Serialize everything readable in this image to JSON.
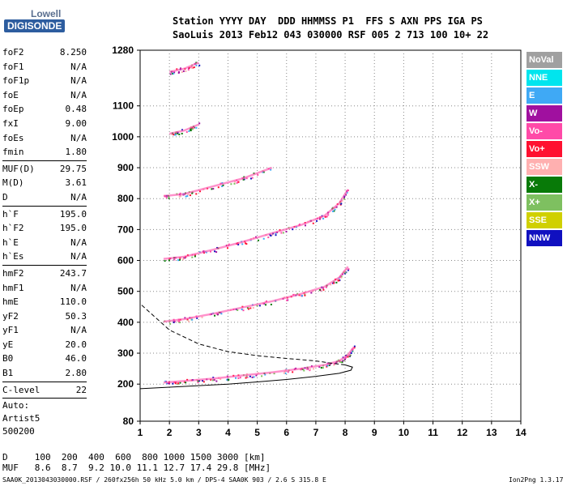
{
  "logo": {
    "line1": "Lowell",
    "line2": "DIGISONDE"
  },
  "header": {
    "line1": "Station YYYY DAY  DDD HHMMSS P1  FFS S AXN PPS IGA PS",
    "line2": "SaoLuis 2013 Feb12 043 030000 RSF 005 2 713 100 10+ 22"
  },
  "params": [
    [
      {
        "k": "foF2",
        "v": "8.250"
      },
      {
        "k": "foF1",
        "v": "N/A"
      },
      {
        "k": "foF1p",
        "v": "N/A"
      },
      {
        "k": "foE",
        "v": "N/A"
      },
      {
        "k": "foEp",
        "v": "0.48"
      },
      {
        "k": "fxI",
        "v": "9.00"
      },
      {
        "k": "foEs",
        "v": "N/A"
      },
      {
        "k": "fmin",
        "v": "1.80"
      }
    ],
    [
      {
        "k": "MUF(D)",
        "v": "29.75"
      },
      {
        "k": "M(D)",
        "v": "3.61"
      },
      {
        "k": "D",
        "v": "N/A"
      }
    ],
    [
      {
        "k": "h`F",
        "v": "195.0"
      },
      {
        "k": "h`F2",
        "v": "195.0"
      },
      {
        "k": "h`E",
        "v": "N/A"
      },
      {
        "k": "h`Es",
        "v": "N/A"
      }
    ],
    [
      {
        "k": "hmF2",
        "v": "243.7"
      },
      {
        "k": "hmF1",
        "v": "N/A"
      },
      {
        "k": "hmE",
        "v": "110.0"
      },
      {
        "k": "yF2",
        "v": "50.3"
      },
      {
        "k": "yF1",
        "v": "N/A"
      },
      {
        "k": "yE",
        "v": "20.0"
      },
      {
        "k": "B0",
        "v": "46.0"
      },
      {
        "k": "B1",
        "v": "2.80"
      }
    ],
    [
      {
        "k": "C-level",
        "v": "22"
      }
    ]
  ],
  "auto": [
    "Auto:",
    "Artist5",
    "500200"
  ],
  "legend": [
    {
      "label": "NoVal",
      "color": "#a0a0a0"
    },
    {
      "label": "NNE",
      "color": "#00e5ee"
    },
    {
      "label": "E",
      "color": "#3fa9f5"
    },
    {
      "label": "W",
      "color": "#a0109f"
    },
    {
      "label": "Vo-",
      "color": "#ff4aa8"
    },
    {
      "label": "Vo+",
      "color": "#ff1030"
    },
    {
      "label": "SSW",
      "color": "#ffb0b0"
    },
    {
      "label": "X-",
      "color": "#087a08"
    },
    {
      "label": "X+",
      "color": "#7ec060"
    },
    {
      "label": "SSE",
      "color": "#d0d000"
    },
    {
      "label": "NNW",
      "color": "#1010c0"
    }
  ],
  "footer": {
    "d_row": "D     100  200  400  600  800 1000 1500 3000 [km]",
    "muf_row": "MUF   8.6  8.7  9.2 10.0 11.1 12.7 17.4 29.8 [MHz]",
    "bottom": "SAA0K_2013043030000.RSF / 260fx256h 50 kHz 5.0 km / DPS-4 SAA0K 903 / 2.6 S 315.8 E",
    "version": "Ion2Png 1.3.17"
  },
  "chart_data": {
    "type": "scatter",
    "xlim": [
      1,
      14
    ],
    "ylim": [
      80,
      1280
    ],
    "x_ticks": [
      1,
      2,
      3,
      4,
      5,
      6,
      7,
      8,
      9,
      10,
      11,
      12,
      13,
      14
    ],
    "y_ticks": [
      80,
      200,
      300,
      400,
      500,
      600,
      700,
      800,
      900,
      1000,
      1100,
      1280
    ],
    "grid": true,
    "traces": [
      {
        "color": "#ff4aa8",
        "points": [
          [
            1.8,
            205
          ],
          [
            2.5,
            210
          ],
          [
            3.5,
            218
          ],
          [
            4.5,
            228
          ],
          [
            5.5,
            238
          ],
          [
            6.5,
            250
          ],
          [
            7.3,
            262
          ],
          [
            7.8,
            275
          ],
          [
            8.1,
            295
          ],
          [
            8.3,
            320
          ]
        ]
      },
      {
        "color": "#ff4aa8",
        "points": [
          [
            1.8,
            402
          ],
          [
            2.5,
            410
          ],
          [
            3.5,
            428
          ],
          [
            4.5,
            448
          ],
          [
            5.5,
            468
          ],
          [
            6.5,
            492
          ],
          [
            7.3,
            515
          ],
          [
            7.8,
            545
          ],
          [
            8.1,
            580
          ]
        ]
      },
      {
        "color": "#ff4aa8",
        "points": [
          [
            1.8,
            605
          ],
          [
            2.5,
            612
          ],
          [
            3.5,
            635
          ],
          [
            4.5,
            660
          ],
          [
            5.5,
            688
          ],
          [
            6.5,
            715
          ],
          [
            7.3,
            745
          ],
          [
            7.8,
            785
          ],
          [
            8.1,
            830
          ]
        ]
      },
      {
        "color": "#ff4aa8",
        "points": [
          [
            1.8,
            808
          ],
          [
            2.5,
            815
          ],
          [
            3.5,
            840
          ],
          [
            4.5,
            865
          ],
          [
            5.5,
            900
          ]
        ]
      },
      {
        "color": "#ff4aa8",
        "points": [
          [
            2.0,
            1010
          ],
          [
            2.5,
            1020
          ],
          [
            3.0,
            1040
          ]
        ]
      },
      {
        "color": "#ff4aa8",
        "points": [
          [
            2.0,
            1210
          ],
          [
            2.5,
            1220
          ],
          [
            3.0,
            1240
          ]
        ]
      }
    ],
    "profile": [
      [
        1,
        185
      ],
      [
        2,
        190
      ],
      [
        3,
        195
      ],
      [
        4,
        200
      ],
      [
        5,
        207
      ],
      [
        6,
        215
      ],
      [
        7,
        225
      ],
      [
        7.8,
        235
      ],
      [
        8.2,
        245
      ],
      [
        8.25,
        255
      ],
      [
        8.0,
        262
      ],
      [
        7.5,
        268
      ],
      [
        7,
        275
      ],
      [
        6,
        283
      ],
      [
        5,
        292
      ],
      [
        4,
        305
      ],
      [
        3,
        330
      ],
      [
        2,
        375
      ],
      [
        1,
        460
      ]
    ]
  }
}
